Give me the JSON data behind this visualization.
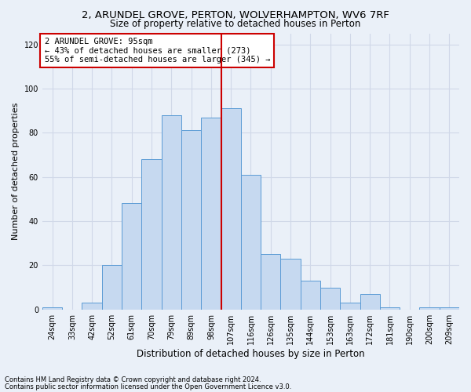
{
  "title1": "2, ARUNDEL GROVE, PERTON, WOLVERHAMPTON, WV6 7RF",
  "title2": "Size of property relative to detached houses in Perton",
  "xlabel": "Distribution of detached houses by size in Perton",
  "ylabel": "Number of detached properties",
  "footnote1": "Contains HM Land Registry data © Crown copyright and database right 2024.",
  "footnote2": "Contains public sector information licensed under the Open Government Licence v3.0.",
  "annotation_line1": "2 ARUNDEL GROVE: 95sqm",
  "annotation_line2": "← 43% of detached houses are smaller (273)",
  "annotation_line3": "55% of semi-detached houses are larger (345) →",
  "bar_labels": [
    "24sqm",
    "33sqm",
    "42sqm",
    "52sqm",
    "61sqm",
    "70sqm",
    "79sqm",
    "89sqm",
    "98sqm",
    "107sqm",
    "116sqm",
    "126sqm",
    "135sqm",
    "144sqm",
    "153sqm",
    "163sqm",
    "172sqm",
    "181sqm",
    "190sqm",
    "200sqm",
    "209sqm"
  ],
  "bar_values": [
    1,
    0,
    3,
    20,
    48,
    68,
    88,
    81,
    87,
    91,
    61,
    25,
    23,
    13,
    10,
    3,
    7,
    1,
    0,
    1,
    1
  ],
  "bar_color": "#c6d9f0",
  "bar_edge_color": "#5b9bd5",
  "vline_x_index": 8,
  "vline_color": "#cc0000",
  "ylim": [
    0,
    125
  ],
  "yticks": [
    0,
    20,
    40,
    60,
    80,
    100,
    120
  ],
  "annotation_box_edge_color": "#cc0000",
  "annotation_box_fill": "#ffffff",
  "grid_color": "#d0d8e8",
  "bg_color": "#eaf0f8",
  "title1_fontsize": 9.5,
  "title2_fontsize": 8.5,
  "ylabel_fontsize": 8,
  "xlabel_fontsize": 8.5,
  "tick_fontsize": 7,
  "annotation_fontsize": 7.5,
  "footnote_fontsize": 6
}
